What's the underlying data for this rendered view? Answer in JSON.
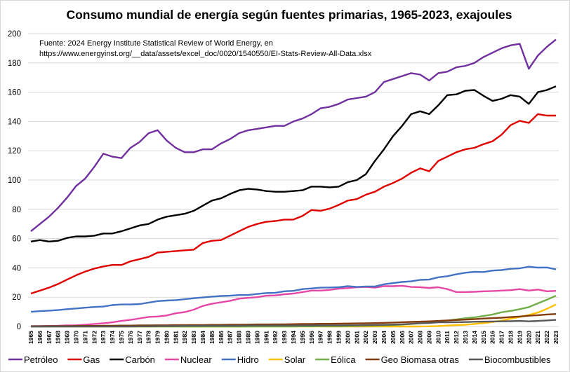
{
  "chart_data": {
    "type": "line",
    "title": "Consumo mundial de energía según fuentes primarias, 1965-2023, exajoules",
    "source_line1": "Fuente:  2024 Energy Institute Statistical Review of World Energy, en",
    "source_line2": "https://www.energyinst.org/__data/assets/excel_doc/0020/1540550/EI-Stats-Review-All-Data.xlsx",
    "xlabel": "",
    "ylabel": "",
    "ylim": [
      0,
      200
    ],
    "yticks": [
      0,
      20,
      40,
      60,
      80,
      100,
      120,
      140,
      160,
      180,
      200
    ],
    "grid": true,
    "legend_placement": "bottom",
    "x": [
      1965,
      1966,
      1967,
      1968,
      1969,
      1970,
      1971,
      1972,
      1973,
      1974,
      1975,
      1976,
      1977,
      1978,
      1979,
      1980,
      1981,
      1982,
      1983,
      1984,
      1985,
      1986,
      1987,
      1988,
      1989,
      1990,
      1991,
      1992,
      1993,
      1994,
      1995,
      1996,
      1997,
      1998,
      1999,
      2000,
      2001,
      2002,
      2003,
      2004,
      2005,
      2006,
      2007,
      2008,
      2009,
      2010,
      2011,
      2012,
      2013,
      2014,
      2015,
      2016,
      2017,
      2018,
      2019,
      2020,
      2021,
      2022,
      2023
    ],
    "series": [
      {
        "name": "Petróleo",
        "color": "#7030a0",
        "values": [
          65,
          70,
          75,
          81,
          88,
          96,
          101,
          109,
          118,
          116,
          115,
          122,
          126,
          132,
          134,
          127,
          122,
          119,
          119,
          121,
          121,
          125,
          128,
          132,
          134,
          135,
          136,
          137,
          137,
          140,
          142,
          145,
          149,
          150,
          152,
          155,
          156,
          157,
          160,
          167,
          169,
          171,
          173,
          172,
          168,
          173,
          174,
          177,
          178,
          180,
          184,
          187,
          190,
          192,
          193,
          176,
          185,
          191,
          196
        ]
      },
      {
        "name": "Gas",
        "color": "#e00000",
        "values": [
          22.5,
          24.5,
          26.5,
          29,
          32,
          35,
          37.5,
          39.5,
          41,
          42,
          42,
          44.5,
          46,
          47.5,
          50.5,
          51,
          51.5,
          52,
          52.5,
          57,
          58.5,
          59,
          62,
          65,
          68,
          70,
          71.5,
          72,
          73,
          73,
          75.5,
          79.5,
          79,
          80.5,
          83,
          86,
          87,
          90,
          92,
          95.5,
          98,
          101,
          105,
          108,
          106,
          113,
          116,
          119,
          121,
          122,
          124.5,
          126.5,
          131,
          137.5,
          140.5,
          139,
          145,
          144,
          144
        ]
      },
      {
        "name": "Carbón",
        "color": "#000000",
        "values": [
          58,
          59,
          58,
          58.5,
          60.5,
          61.5,
          61.5,
          62,
          63.5,
          63.5,
          65,
          67,
          69,
          70,
          73,
          75,
          76,
          77,
          79,
          82.5,
          86,
          87.5,
          90.5,
          93,
          94,
          93.5,
          92.5,
          92,
          92,
          92.5,
          93,
          95.5,
          95.5,
          95,
          95.5,
          98.5,
          100,
          104,
          113,
          121,
          130,
          137,
          145,
          147,
          145,
          151,
          158,
          158.5,
          161,
          161.5,
          157.5,
          154,
          155.5,
          158,
          157,
          152,
          160,
          161.5,
          164
        ]
      },
      {
        "name": "Nuclear",
        "color": "#e646a6",
        "values": [
          0.2,
          0.3,
          0.4,
          0.5,
          0.7,
          0.8,
          1.2,
          1.7,
          2.2,
          2.8,
          3.8,
          4.5,
          5.5,
          6.5,
          6.8,
          7.5,
          9,
          9.8,
          11.5,
          14,
          15.5,
          16.5,
          17.5,
          19,
          19.5,
          20,
          21,
          21.2,
          22,
          22.5,
          23.5,
          24.5,
          24.5,
          25,
          25.8,
          26.2,
          26.8,
          27,
          26.5,
          27.5,
          27.5,
          27.8,
          27,
          26.8,
          26.3,
          26.8,
          25.5,
          23.5,
          23.5,
          23.7,
          24,
          24.2,
          24.5,
          24.8,
          25.5,
          24.5,
          25.2,
          24,
          24.3
        ]
      },
      {
        "name": "Hidro",
        "color": "#4472c4",
        "values": [
          10,
          10.5,
          10.8,
          11.2,
          11.8,
          12.3,
          12.8,
          13.3,
          13.6,
          14.6,
          15,
          15,
          15.3,
          16.3,
          17.3,
          17.7,
          18,
          18.6,
          19.3,
          19.8,
          20.4,
          20.8,
          21,
          21.5,
          21.5,
          22.2,
          22.8,
          23,
          24,
          24.3,
          25.5,
          26,
          26.5,
          26.6,
          26.8,
          27.5,
          27,
          27.3,
          27.3,
          28.8,
          29.6,
          30.4,
          30.8,
          31.8,
          32,
          33.6,
          34.3,
          35.7,
          36.7,
          37.3,
          37.2,
          38.2,
          38.5,
          39.4,
          39.7,
          40.8,
          40.2,
          40.3,
          39
        ]
      },
      {
        "name": "Solar",
        "color": "#ffc000",
        "values": [
          0,
          0,
          0,
          0,
          0,
          0,
          0,
          0,
          0,
          0,
          0,
          0,
          0,
          0,
          0,
          0,
          0,
          0,
          0,
          0,
          0,
          0,
          0,
          0,
          0,
          0,
          0,
          0,
          0,
          0,
          0,
          0,
          0,
          0,
          0,
          0,
          0,
          0,
          0,
          0,
          0,
          0.01,
          0.02,
          0.05,
          0.1,
          0.3,
          0.6,
          0.9,
          1.2,
          1.7,
          2.3,
          3,
          4,
          5.3,
          6.5,
          7.8,
          9.5,
          12,
          15
        ]
      },
      {
        "name": "Eólica",
        "color": "#70ad47",
        "values": [
          0,
          0,
          0,
          0,
          0,
          0,
          0,
          0,
          0,
          0,
          0,
          0,
          0,
          0,
          0,
          0,
          0,
          0,
          0,
          0,
          0,
          0,
          0,
          0,
          0,
          0.04,
          0.05,
          0.05,
          0.06,
          0.07,
          0.08,
          0.1,
          0.13,
          0.2,
          0.25,
          0.3,
          0.4,
          0.5,
          0.6,
          0.8,
          1,
          1.3,
          1.7,
          2.1,
          2.6,
          3.3,
          4.1,
          4.8,
          5.6,
          6.2,
          7.2,
          8.2,
          9.7,
          10.6,
          11.8,
          13.2,
          15.8,
          18.3,
          21
        ]
      },
      {
        "name": "Geo Biomasa otras",
        "color": "#843c0c",
        "values": [
          0.2,
          0.2,
          0.3,
          0.3,
          0.3,
          0.4,
          0.4,
          0.4,
          0.5,
          0.5,
          0.6,
          0.6,
          0.7,
          0.7,
          0.8,
          0.8,
          0.9,
          0.9,
          1,
          1,
          1.1,
          1.1,
          1.2,
          1.2,
          1.3,
          1.4,
          1.4,
          1.5,
          1.5,
          1.6,
          1.7,
          1.7,
          1.8,
          1.8,
          1.9,
          2,
          2.1,
          2.2,
          2.3,
          2.5,
          2.7,
          2.9,
          3.1,
          3.3,
          3.5,
          3.8,
          4.1,
          4.4,
          4.7,
          5,
          5.4,
          5.7,
          6,
          6.4,
          6.8,
          7.3,
          7.7,
          8.2,
          8.5
        ]
      },
      {
        "name": "Biocombustibles",
        "color": "#595959",
        "values": [
          0,
          0,
          0,
          0,
          0,
          0,
          0,
          0,
          0,
          0,
          0,
          0,
          0.1,
          0.1,
          0.2,
          0.3,
          0.3,
          0.4,
          0.4,
          0.5,
          0.5,
          0.5,
          0.5,
          0.5,
          0.6,
          0.6,
          0.6,
          0.6,
          0.6,
          0.6,
          0.7,
          0.7,
          0.7,
          0.7,
          0.7,
          0.8,
          0.8,
          0.9,
          1,
          1.1,
          1.3,
          1.5,
          1.8,
          2.2,
          2.4,
          2.8,
          2.8,
          2.9,
          3,
          3.2,
          3.3,
          3.4,
          3.5,
          3.6,
          3.8,
          3.5,
          3.8,
          4.1,
          4.5
        ]
      }
    ]
  }
}
